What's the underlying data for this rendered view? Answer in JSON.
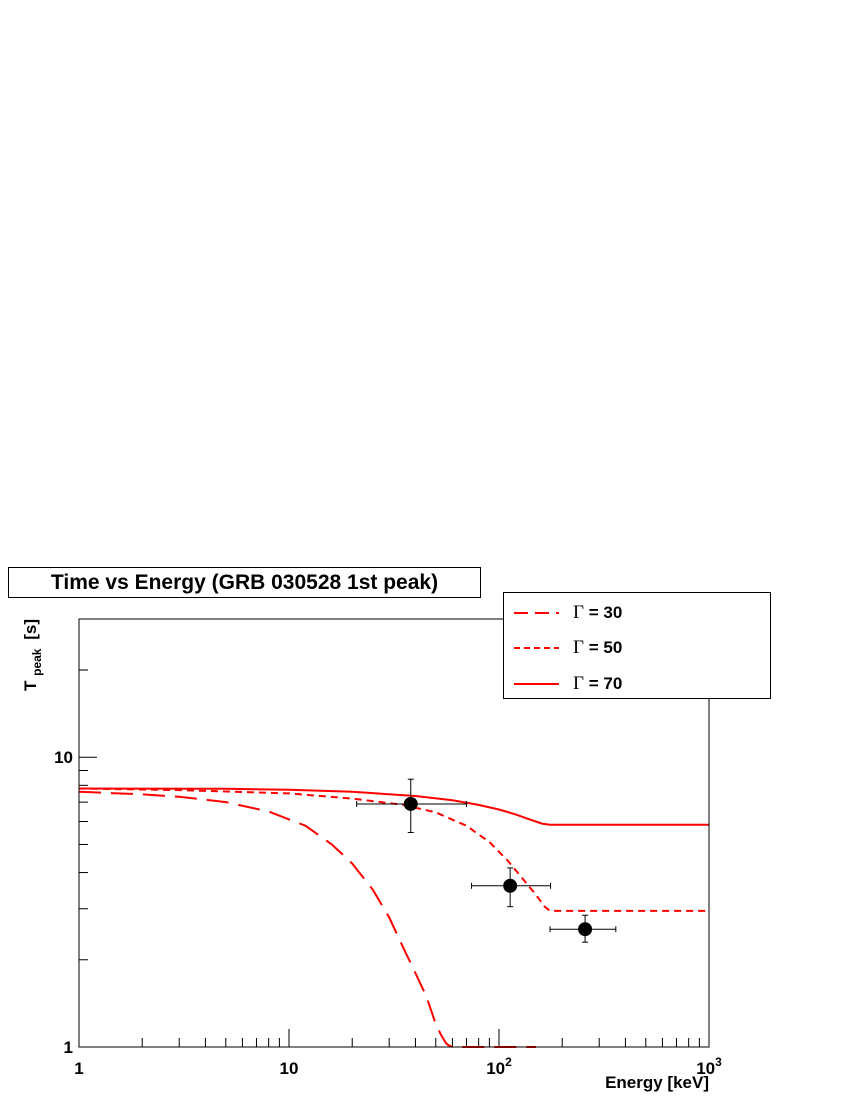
{
  "chart_data": {
    "type": "line",
    "title": "Time vs Energy (GRB 030528 1st peak)",
    "xlabel": "Energy [keV]",
    "ylabel": "T",
    "ylabel_subscript": "peak",
    "ylabel_unit": "[s]",
    "x_scale": "log",
    "y_scale": "log",
    "xlim": [
      1,
      1000
    ],
    "ylim": [
      1,
      30
    ],
    "x_tick_labels": [
      {
        "value": 1,
        "base": "1",
        "exp": ""
      },
      {
        "value": 10,
        "base": "10",
        "exp": ""
      },
      {
        "value": 100,
        "base": "10",
        "exp": "2"
      },
      {
        "value": 1000,
        "base": "10",
        "exp": "3"
      }
    ],
    "y_tick_labels": [
      {
        "value": 1,
        "label": "1"
      },
      {
        "value": 10,
        "label": "10"
      }
    ],
    "legend_position": "top-right",
    "series": [
      {
        "name_symbol": "Γ",
        "name_value": " = 30",
        "style": "long-dash",
        "color": "#ff0000",
        "x": [
          1,
          2,
          3,
          5,
          8,
          12,
          16,
          20,
          25,
          30,
          35,
          40,
          45,
          50,
          53,
          56,
          58,
          60,
          100,
          150
        ],
        "y": [
          7.6,
          7.45,
          7.3,
          7.0,
          6.5,
          5.8,
          5.0,
          4.3,
          3.5,
          2.8,
          2.2,
          1.8,
          1.5,
          1.2,
          1.1,
          1.03,
          1.01,
          1.0,
          1.0,
          1.0
        ]
      },
      {
        "name_symbol": "Γ",
        "name_value": " = 50",
        "style": "short-dash",
        "color": "#ff0000",
        "x": [
          1,
          3,
          10,
          20,
          35,
          50,
          70,
          90,
          110,
          130,
          150,
          165,
          175,
          300,
          1000
        ],
        "y": [
          7.8,
          7.7,
          7.5,
          7.2,
          6.85,
          6.45,
          5.8,
          5.1,
          4.4,
          3.8,
          3.35,
          3.05,
          2.95,
          2.95,
          2.95
        ]
      },
      {
        "name_symbol": "Γ",
        "name_value": " = 70",
        "style": "solid",
        "color": "#ff0000",
        "x": [
          1,
          5,
          10,
          20,
          40,
          60,
          80,
          100,
          120,
          140,
          160,
          175,
          300,
          1000
        ],
        "y": [
          7.8,
          7.78,
          7.72,
          7.6,
          7.35,
          7.1,
          6.85,
          6.6,
          6.35,
          6.1,
          5.9,
          5.85,
          5.85,
          5.85
        ]
      }
    ],
    "points": [
      {
        "x": 38,
        "y": 6.9,
        "x_err": [
          21,
          70
        ],
        "y_err": [
          5.5,
          8.4
        ]
      },
      {
        "x": 113,
        "y": 3.6,
        "x_err": [
          74,
          176
        ],
        "y_err": [
          3.05,
          4.15
        ]
      },
      {
        "x": 257,
        "y": 2.55,
        "x_err": [
          175,
          360
        ],
        "y_err": [
          2.3,
          2.85
        ]
      }
    ]
  }
}
